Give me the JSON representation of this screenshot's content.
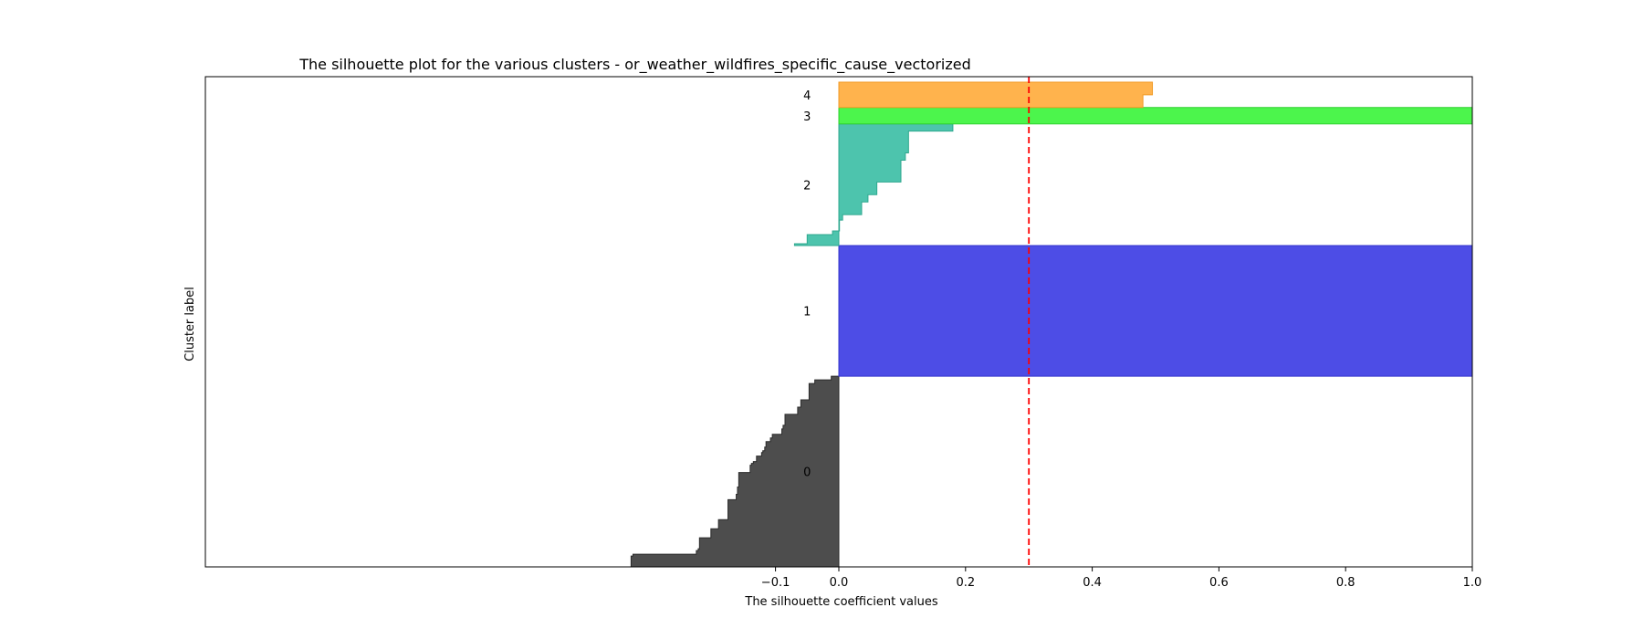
{
  "chart_data": {
    "type": "area",
    "title": "The silhouette plot for the various clusters - or_weather_wildfires_specific_cause_vectorized",
    "xlabel": "The silhouette coefficient values",
    "ylabel": "Cluster label",
    "xlim": [
      -1.0,
      1.0
    ],
    "xticks": [
      -0.1,
      0.0,
      0.2,
      0.4,
      0.6,
      0.8,
      1.0
    ],
    "xtick_labels": [
      "−0.1",
      "0.0",
      "0.2",
      "0.4",
      "0.6",
      "0.8",
      "1.0"
    ],
    "yticks": false,
    "grid": false,
    "average_silhouette": 0.3,
    "average_line_color": "#ff0000",
    "ylim": [
      0,
      270
    ],
    "clusters": [
      {
        "label": "0",
        "color": "#4d4d4d",
        "edge": "#2b2b2b",
        "size": 105,
        "values": [
          -0.328,
          -0.328,
          -0.328,
          -0.328,
          -0.328,
          -0.328,
          -0.325,
          -0.225,
          -0.225,
          -0.222,
          -0.22,
          -0.22,
          -0.22,
          -0.22,
          -0.22,
          -0.22,
          -0.202,
          -0.202,
          -0.202,
          -0.202,
          -0.202,
          -0.19,
          -0.19,
          -0.19,
          -0.19,
          -0.19,
          -0.175,
          -0.175,
          -0.175,
          -0.175,
          -0.175,
          -0.175,
          -0.175,
          -0.175,
          -0.175,
          -0.175,
          -0.175,
          -0.162,
          -0.162,
          -0.162,
          -0.16,
          -0.16,
          -0.16,
          -0.16,
          -0.158,
          -0.158,
          -0.158,
          -0.158,
          -0.158,
          -0.158,
          -0.158,
          -0.158,
          -0.14,
          -0.14,
          -0.14,
          -0.14,
          -0.138,
          -0.135,
          -0.13,
          -0.13,
          -0.13,
          -0.122,
          -0.122,
          -0.12,
          -0.117,
          -0.117,
          -0.115,
          -0.115,
          -0.115,
          -0.108,
          -0.108,
          -0.105,
          -0.105,
          -0.09,
          -0.09,
          -0.09,
          -0.088,
          -0.088,
          -0.085,
          -0.085,
          -0.085,
          -0.085,
          -0.085,
          -0.085,
          -0.065,
          -0.065,
          -0.065,
          -0.065,
          -0.06,
          -0.06,
          -0.06,
          -0.06,
          -0.047,
          -0.047,
          -0.047,
          -0.047,
          -0.047,
          -0.047,
          -0.047,
          -0.047,
          -0.047,
          -0.038,
          -0.038,
          -0.012,
          -0.012
        ]
      },
      {
        "label": "1",
        "color": "#4d4de6",
        "edge": "#3333cc",
        "size": 72,
        "values": "all 1.0"
      },
      {
        "label": "2",
        "color": "#4dc4ad",
        "edge": "#2fa88f",
        "size": 67,
        "values": [
          -0.07,
          -0.05,
          -0.05,
          -0.05,
          -0.05,
          -0.05,
          -0.01,
          -0.01,
          0.001,
          0.001,
          0.001,
          0.001,
          0.001,
          0.001,
          0.006,
          0.006,
          0.006,
          0.036,
          0.036,
          0.036,
          0.036,
          0.036,
          0.036,
          0.036,
          0.046,
          0.046,
          0.046,
          0.046,
          0.06,
          0.06,
          0.06,
          0.06,
          0.06,
          0.06,
          0.06,
          0.098,
          0.098,
          0.098,
          0.098,
          0.098,
          0.098,
          0.098,
          0.098,
          0.098,
          0.098,
          0.098,
          0.098,
          0.105,
          0.105,
          0.105,
          0.105,
          0.11,
          0.11,
          0.11,
          0.11,
          0.11,
          0.11,
          0.11,
          0.11,
          0.11,
          0.11,
          0.11,
          0.11,
          0.18,
          0.18,
          0.18,
          0.18
        ]
      },
      {
        "label": "3",
        "color": "#4cf54c",
        "edge": "#2ed12e",
        "size": 9,
        "values": "all 1.0"
      },
      {
        "label": "4",
        "color": "#ffb34d",
        "edge": "#f09a25",
        "size": 14,
        "values": [
          0.48,
          0.48,
          0.48,
          0.48,
          0.48,
          0.48,
          0.48,
          0.495,
          0.495,
          0.495,
          0.495,
          0.495,
          0.495,
          0.495
        ]
      }
    ],
    "gap": 0
  }
}
